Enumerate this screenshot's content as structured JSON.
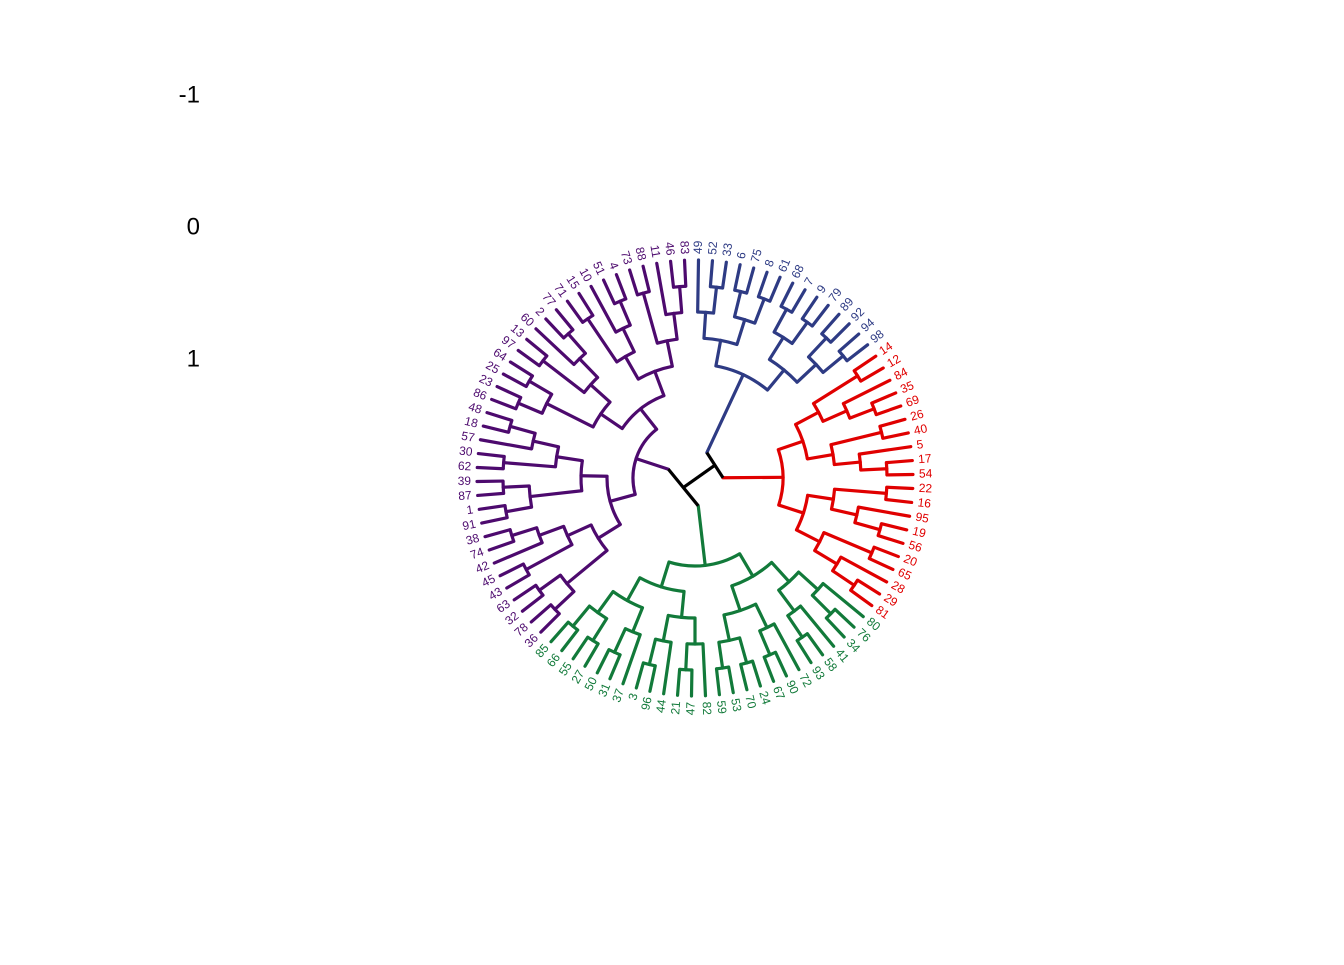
{
  "chart_data": {
    "type": "dendrogram",
    "ylim": [
      -1,
      1
    ],
    "yticks": [
      -1,
      0,
      1
    ],
    "series": [
      {
        "color": "#4d0a6e",
        "leaves": [
          "36",
          "78",
          "32",
          "63",
          "43",
          "45",
          "42",
          "74",
          "38",
          "91",
          "1",
          "87",
          "39",
          "62",
          "30",
          "57",
          "18",
          "48",
          "86",
          "23",
          "25",
          "64",
          "97",
          "13",
          "60",
          "2",
          "77",
          "71",
          "15",
          "10",
          "51",
          "4",
          "73",
          "88",
          "11",
          "46",
          "83"
        ]
      },
      {
        "color": "#2e3b84",
        "leaves": [
          "49",
          "52",
          "33",
          "6",
          "75",
          "8",
          "61",
          "68",
          "7",
          "9",
          "79",
          "89",
          "92",
          "94",
          "98"
        ]
      },
      {
        "color": "#e00000",
        "leaves": [
          "14",
          "12",
          "84",
          "35",
          "69",
          "26",
          "40",
          "5",
          "17",
          "54",
          "22",
          "16",
          "95",
          "19",
          "56",
          "20",
          "65",
          "28",
          "29",
          "81"
        ]
      },
      {
        "color": "#127a3a",
        "leaves": [
          "80",
          "76",
          "34",
          "41",
          "58",
          "93",
          "72",
          "90",
          "67",
          "24",
          "70",
          "53",
          "59",
          "82",
          "47",
          "21",
          "44",
          "96",
          "3",
          "37",
          "31",
          "50",
          "27",
          "55",
          "66",
          "85"
        ]
      }
    ]
  }
}
